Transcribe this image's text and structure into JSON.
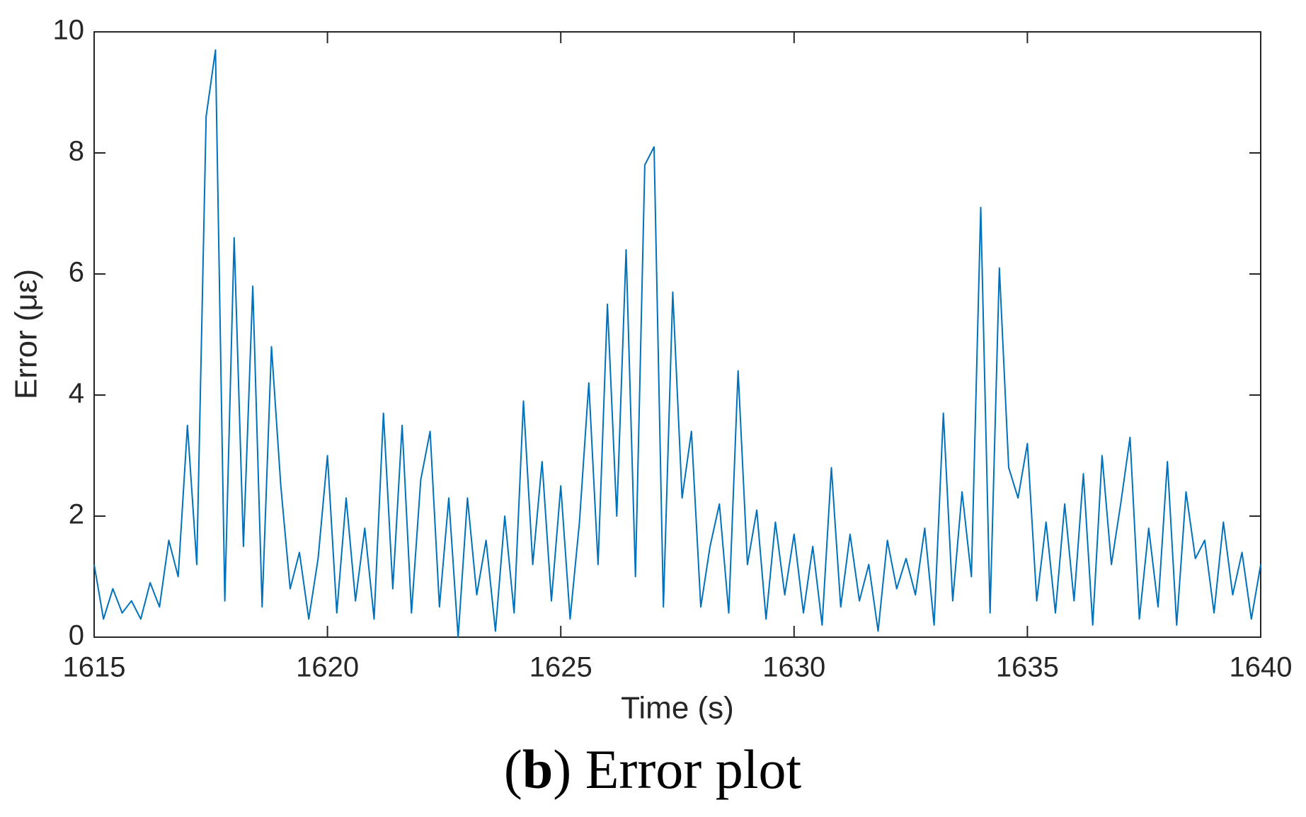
{
  "chart_data": {
    "type": "line",
    "xlabel": "Time (s)",
    "ylabel": "Error (με)",
    "caption": {
      "prefix": "(",
      "letter": "b",
      "suffix": ") Error plot"
    },
    "xlim": [
      1615,
      1640
    ],
    "xticks": [
      1615,
      1620,
      1625,
      1630,
      1635,
      1640
    ],
    "ylim": [
      0,
      10
    ],
    "yticks": [
      0,
      2,
      4,
      6,
      8,
      10
    ],
    "x": [
      1615.0,
      1615.2,
      1615.4,
      1615.6,
      1615.8,
      1616.0,
      1616.2,
      1616.4,
      1616.6,
      1616.8,
      1617.0,
      1617.2,
      1617.4,
      1617.6,
      1617.8,
      1618.0,
      1618.2,
      1618.4,
      1618.6,
      1618.8,
      1619.0,
      1619.2,
      1619.4,
      1619.6,
      1619.8,
      1620.0,
      1620.2,
      1620.4,
      1620.6,
      1620.8,
      1621.0,
      1621.2,
      1621.4,
      1621.6,
      1621.8,
      1622.0,
      1622.2,
      1622.4,
      1622.6,
      1622.8,
      1623.0,
      1623.2,
      1623.4,
      1623.6,
      1623.8,
      1624.0,
      1624.2,
      1624.4,
      1624.6,
      1624.8,
      1625.0,
      1625.2,
      1625.4,
      1625.6,
      1625.8,
      1626.0,
      1626.2,
      1626.4,
      1626.6,
      1626.8,
      1627.0,
      1627.2,
      1627.4,
      1627.6,
      1627.8,
      1628.0,
      1628.2,
      1628.4,
      1628.6,
      1628.8,
      1629.0,
      1629.2,
      1629.4,
      1629.6,
      1629.8,
      1630.0,
      1630.2,
      1630.4,
      1630.6,
      1630.8,
      1631.0,
      1631.2,
      1631.4,
      1631.6,
      1631.8,
      1632.0,
      1632.2,
      1632.4,
      1632.6,
      1632.8,
      1633.0,
      1633.2,
      1633.4,
      1633.6,
      1633.8,
      1634.0,
      1634.2,
      1634.4,
      1634.6,
      1634.8,
      1635.0,
      1635.2,
      1635.4,
      1635.6,
      1635.8,
      1636.0,
      1636.2,
      1636.4,
      1636.6,
      1636.8,
      1637.0,
      1637.2,
      1637.4,
      1637.6,
      1637.8,
      1638.0,
      1638.2,
      1638.4,
      1638.6,
      1638.8,
      1639.0,
      1639.2,
      1639.4,
      1639.6,
      1639.8,
      1640.0
    ],
    "series": [
      {
        "name": "Error",
        "color": "#0072bd",
        "values": [
          1.2,
          0.3,
          0.8,
          0.4,
          0.6,
          0.3,
          0.9,
          0.5,
          1.6,
          1.0,
          3.5,
          1.2,
          8.6,
          9.7,
          0.6,
          6.6,
          1.5,
          5.8,
          0.5,
          4.8,
          2.5,
          0.8,
          1.4,
          0.3,
          1.3,
          3.0,
          0.4,
          2.3,
          0.6,
          1.8,
          0.3,
          3.7,
          0.8,
          3.5,
          0.4,
          2.6,
          3.4,
          0.5,
          2.3,
          0.0,
          2.3,
          0.7,
          1.6,
          0.1,
          2.0,
          0.4,
          3.9,
          1.2,
          2.9,
          0.6,
          2.5,
          0.3,
          1.9,
          4.2,
          1.2,
          5.5,
          2.0,
          6.4,
          1.0,
          7.8,
          8.1,
          0.5,
          5.7,
          2.3,
          3.4,
          0.5,
          1.5,
          2.2,
          0.4,
          4.4,
          1.2,
          2.1,
          0.3,
          1.9,
          0.7,
          1.7,
          0.4,
          1.5,
          0.2,
          2.8,
          0.5,
          1.7,
          0.6,
          1.2,
          0.1,
          1.6,
          0.8,
          1.3,
          0.7,
          1.8,
          0.2,
          3.7,
          0.6,
          2.4,
          1.0,
          7.1,
          0.4,
          6.1,
          2.8,
          2.3,
          3.2,
          0.6,
          1.9,
          0.4,
          2.2,
          0.6,
          2.7,
          0.2,
          3.0,
          1.2,
          2.2,
          3.3,
          0.3,
          1.8,
          0.5,
          2.9,
          0.2,
          2.4,
          1.3,
          1.6,
          0.4,
          1.9,
          0.7,
          1.4,
          0.3,
          1.2
        ]
      }
    ]
  }
}
